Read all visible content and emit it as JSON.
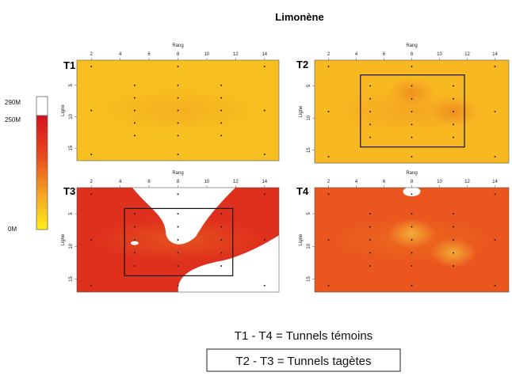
{
  "chart_data": {
    "type": "heatmap",
    "title": "Limonène",
    "colorbar": {
      "labels": [
        "290M",
        "250M",
        "0M"
      ],
      "min": 0,
      "max": 290,
      "saturation": 250,
      "colors": [
        "#ffef1a",
        "#f5a623",
        "#e8491d",
        "#d4111e"
      ]
    },
    "panels": [
      {
        "name": "T1",
        "xlabel": "Rang",
        "ylabel": "Ligne",
        "xticks": [
          "2",
          "4",
          "6",
          "8",
          "10",
          "12",
          "14"
        ],
        "yticks": [
          "5",
          "10",
          "15"
        ],
        "xlim": [
          1,
          15
        ],
        "ylim": [
          1,
          17
        ],
        "points": [
          [
            2,
            2
          ],
          [
            8,
            2
          ],
          [
            14,
            2
          ],
          [
            5,
            5
          ],
          [
            8,
            5
          ],
          [
            11,
            5
          ],
          [
            5,
            7
          ],
          [
            8,
            7
          ],
          [
            11,
            7
          ],
          [
            2,
            9
          ],
          [
            5,
            9
          ],
          [
            8,
            9
          ],
          [
            11,
            9
          ],
          [
            14,
            9
          ],
          [
            5,
            11
          ],
          [
            8,
            11
          ],
          [
            11,
            11
          ],
          [
            5,
            13
          ],
          [
            8,
            13
          ],
          [
            11,
            13
          ],
          [
            2,
            16
          ],
          [
            8,
            16
          ],
          [
            14,
            16
          ]
        ],
        "blobs": [],
        "level": 0.22,
        "box": null
      },
      {
        "name": "T2",
        "xlabel": "Rang",
        "ylabel": "Ligne",
        "xticks": [
          "2",
          "4",
          "6",
          "8",
          "10",
          "12",
          "14"
        ],
        "yticks": [
          "5",
          "10",
          "15"
        ],
        "xlim": [
          1,
          15
        ],
        "ylim": [
          1,
          17
        ],
        "points": [
          [
            2,
            2
          ],
          [
            8,
            2
          ],
          [
            14,
            2
          ],
          [
            5,
            5
          ],
          [
            8,
            5
          ],
          [
            11,
            5
          ],
          [
            5,
            7
          ],
          [
            8,
            7
          ],
          [
            11,
            7
          ],
          [
            2,
            9
          ],
          [
            5,
            9
          ],
          [
            8,
            9
          ],
          [
            11,
            9
          ],
          [
            14,
            9
          ],
          [
            5,
            11
          ],
          [
            8,
            11
          ],
          [
            11,
            11
          ],
          [
            5,
            13
          ],
          [
            8,
            13
          ],
          [
            11,
            13
          ],
          [
            2,
            16
          ],
          [
            8,
            16
          ],
          [
            14,
            16
          ]
        ],
        "blobs": [
          {
            "x": 8,
            "y": 6,
            "w": 0.22
          },
          {
            "x": 11,
            "y": 9,
            "w": 0.2
          }
        ],
        "level": 0.25,
        "box": [
          4.3,
          3.3,
          11.8,
          14.5
        ]
      },
      {
        "name": "T3",
        "xlabel": "Rang",
        "ylabel": "Ligne",
        "xticks": [
          "2",
          "4",
          "6",
          "8",
          "10",
          "12",
          "14"
        ],
        "yticks": [
          "5",
          "10",
          "15"
        ],
        "xlim": [
          1,
          15
        ],
        "ylim": [
          1,
          17
        ],
        "points": [
          [
            2,
            2
          ],
          [
            8,
            2
          ],
          [
            14,
            2
          ],
          [
            5,
            5
          ],
          [
            8,
            5
          ],
          [
            11,
            5
          ],
          [
            5,
            7
          ],
          [
            8,
            7
          ],
          [
            11,
            7
          ],
          [
            2,
            9
          ],
          [
            5,
            9
          ],
          [
            8,
            9
          ],
          [
            11,
            9
          ],
          [
            14,
            9
          ],
          [
            5,
            11
          ],
          [
            8,
            11
          ],
          [
            11,
            11
          ],
          [
            5,
            13
          ],
          [
            8,
            13
          ],
          [
            11,
            13
          ],
          [
            2,
            16
          ],
          [
            8,
            16
          ],
          [
            14,
            16
          ]
        ],
        "blobs": [],
        "level": 0.82,
        "box": [
          4.3,
          4.2,
          11.8,
          14.5
        ]
      },
      {
        "name": "T4",
        "xlabel": "Rang",
        "ylabel": "Ligne",
        "xticks": [
          "2",
          "4",
          "6",
          "8",
          "10",
          "12",
          "14"
        ],
        "yticks": [
          "5",
          "10",
          "15"
        ],
        "xlim": [
          1,
          15
        ],
        "ylim": [
          1,
          17
        ],
        "points": [
          [
            2,
            2
          ],
          [
            8,
            2
          ],
          [
            14,
            2
          ],
          [
            5,
            5
          ],
          [
            8,
            5
          ],
          [
            11,
            5
          ],
          [
            5,
            7
          ],
          [
            8,
            7
          ],
          [
            11,
            7
          ],
          [
            2,
            9
          ],
          [
            5,
            9
          ],
          [
            8,
            9
          ],
          [
            11,
            9
          ],
          [
            14,
            9
          ],
          [
            5,
            11
          ],
          [
            8,
            11
          ],
          [
            11,
            11
          ],
          [
            5,
            13
          ],
          [
            8,
            13
          ],
          [
            11,
            13
          ],
          [
            2,
            16
          ],
          [
            8,
            16
          ],
          [
            14,
            16
          ]
        ],
        "blobs": [
          {
            "x": 8,
            "y": 8,
            "w": -0.15
          },
          {
            "x": 11,
            "y": 11,
            "w": -0.12
          }
        ],
        "level": 0.62,
        "box": null
      }
    ],
    "captions": [
      "T1 - T4 = Tunnels témoins",
      "T2 - T3 = Tunnels tagètes"
    ]
  }
}
